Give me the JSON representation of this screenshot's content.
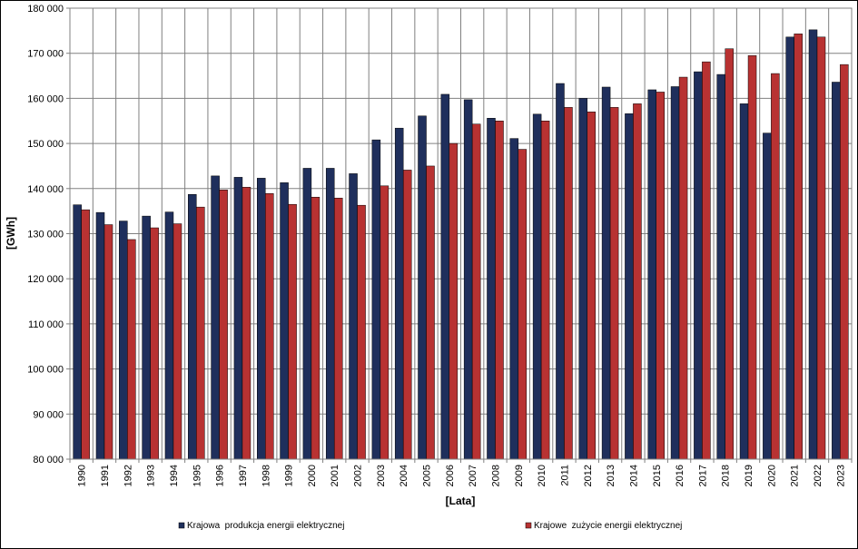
{
  "chart_data": {
    "type": "bar",
    "title": "",
    "xlabel": "[Lata]",
    "ylabel": "[GWh]",
    "ylim": [
      80000,
      180000
    ],
    "ytick_step": 10000,
    "yticks": [
      "80 000",
      "90 000",
      "100 000",
      "110 000",
      "120 000",
      "130 000",
      "140 000",
      "150 000",
      "160 000",
      "170 000",
      "180 000"
    ],
    "grid": true,
    "legend_position": "bottom",
    "categories": [
      "1990",
      "1991",
      "1992",
      "1993",
      "1994",
      "1995",
      "1996",
      "1997",
      "1998",
      "1999",
      "2000",
      "2001",
      "2002",
      "2003",
      "2004",
      "2005",
      "2006",
      "2007",
      "2008",
      "2009",
      "2010",
      "2011",
      "2012",
      "2013",
      "2014",
      "2015",
      "2016",
      "2017",
      "2018",
      "2019",
      "2020",
      "2021",
      "2022",
      "2023"
    ],
    "series": [
      {
        "name": "Krajowa  produkcja energii elektrycznej",
        "color": "#1f2f5c",
        "values": [
          136400,
          134700,
          132800,
          133900,
          134800,
          138700,
          142800,
          142500,
          142300,
          141300,
          144500,
          144500,
          143300,
          150800,
          153400,
          156100,
          160900,
          159700,
          155600,
          151100,
          156500,
          163300,
          160000,
          162500,
          156600,
          161900,
          162600,
          165900,
          165300,
          158800,
          152300,
          173600,
          175200,
          163600
        ]
      },
      {
        "name": "Krajowe  zużycie energii elektrycznej",
        "color": "#b83232",
        "values": [
          135300,
          132000,
          128700,
          131300,
          132200,
          135900,
          139700,
          140300,
          138900,
          136500,
          138100,
          137900,
          136300,
          140600,
          144100,
          145000,
          150000,
          154300,
          155000,
          148700,
          155000,
          158000,
          157000,
          158000,
          158800,
          161400,
          164700,
          168100,
          171000,
          169500,
          165500,
          174300,
          173600,
          167500
        ]
      }
    ]
  }
}
